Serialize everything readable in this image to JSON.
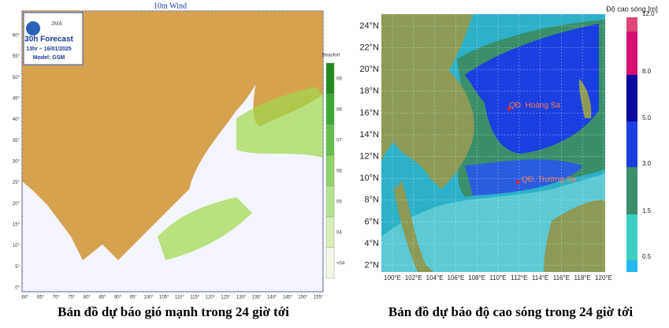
{
  "left_map": {
    "title": "10m Wind",
    "agency": "JMA",
    "forecast": "30h Forecast",
    "time": "13hr – 16/01/2025",
    "model": "Model: GSM",
    "legend_title": "Beaufort",
    "legend_labels": [
      "09",
      "08",
      "07",
      "06",
      "05",
      "04",
      "<04"
    ],
    "lat_labels": [
      "60°",
      "55°",
      "50°",
      "45°",
      "40°",
      "35°",
      "30°",
      "25°",
      "20°",
      "15°",
      "10°",
      "5°",
      "0°"
    ],
    "lon_labels": [
      "60°",
      "65°",
      "70°",
      "75°",
      "80°",
      "85°",
      "90°",
      "95°",
      "100°",
      "105°",
      "110°",
      "115°",
      "120°",
      "125°",
      "130°",
      "135°",
      "140°",
      "145°",
      "150°",
      "155°"
    ],
    "caption": "Bản đồ dự báo gió mạnh trong 24 giờ tới"
  },
  "right_map": {
    "legend_title": "Độ cao sóng [m]",
    "legend_labels": [
      "12.0",
      "8.0",
      "5.0",
      "3.0",
      "1.5",
      "0.5"
    ],
    "lat_labels": [
      "24°N",
      "22°N",
      "20°N",
      "18°N",
      "16°N",
      "14°N",
      "12°N",
      "10°N",
      "8°N",
      "6°N",
      "4°N",
      "2°N"
    ],
    "lon_labels": [
      "100°E",
      "102°E",
      "104°E",
      "106°E",
      "108°E",
      "110°E",
      "112°E",
      "114°E",
      "116°E",
      "118°E",
      "120°E"
    ],
    "places": [
      "QĐ. Hoàng Sa",
      "QĐ. Trường Sa"
    ],
    "caption": "Bản đồ dự báo độ cao sóng trong 24 giờ tới"
  }
}
